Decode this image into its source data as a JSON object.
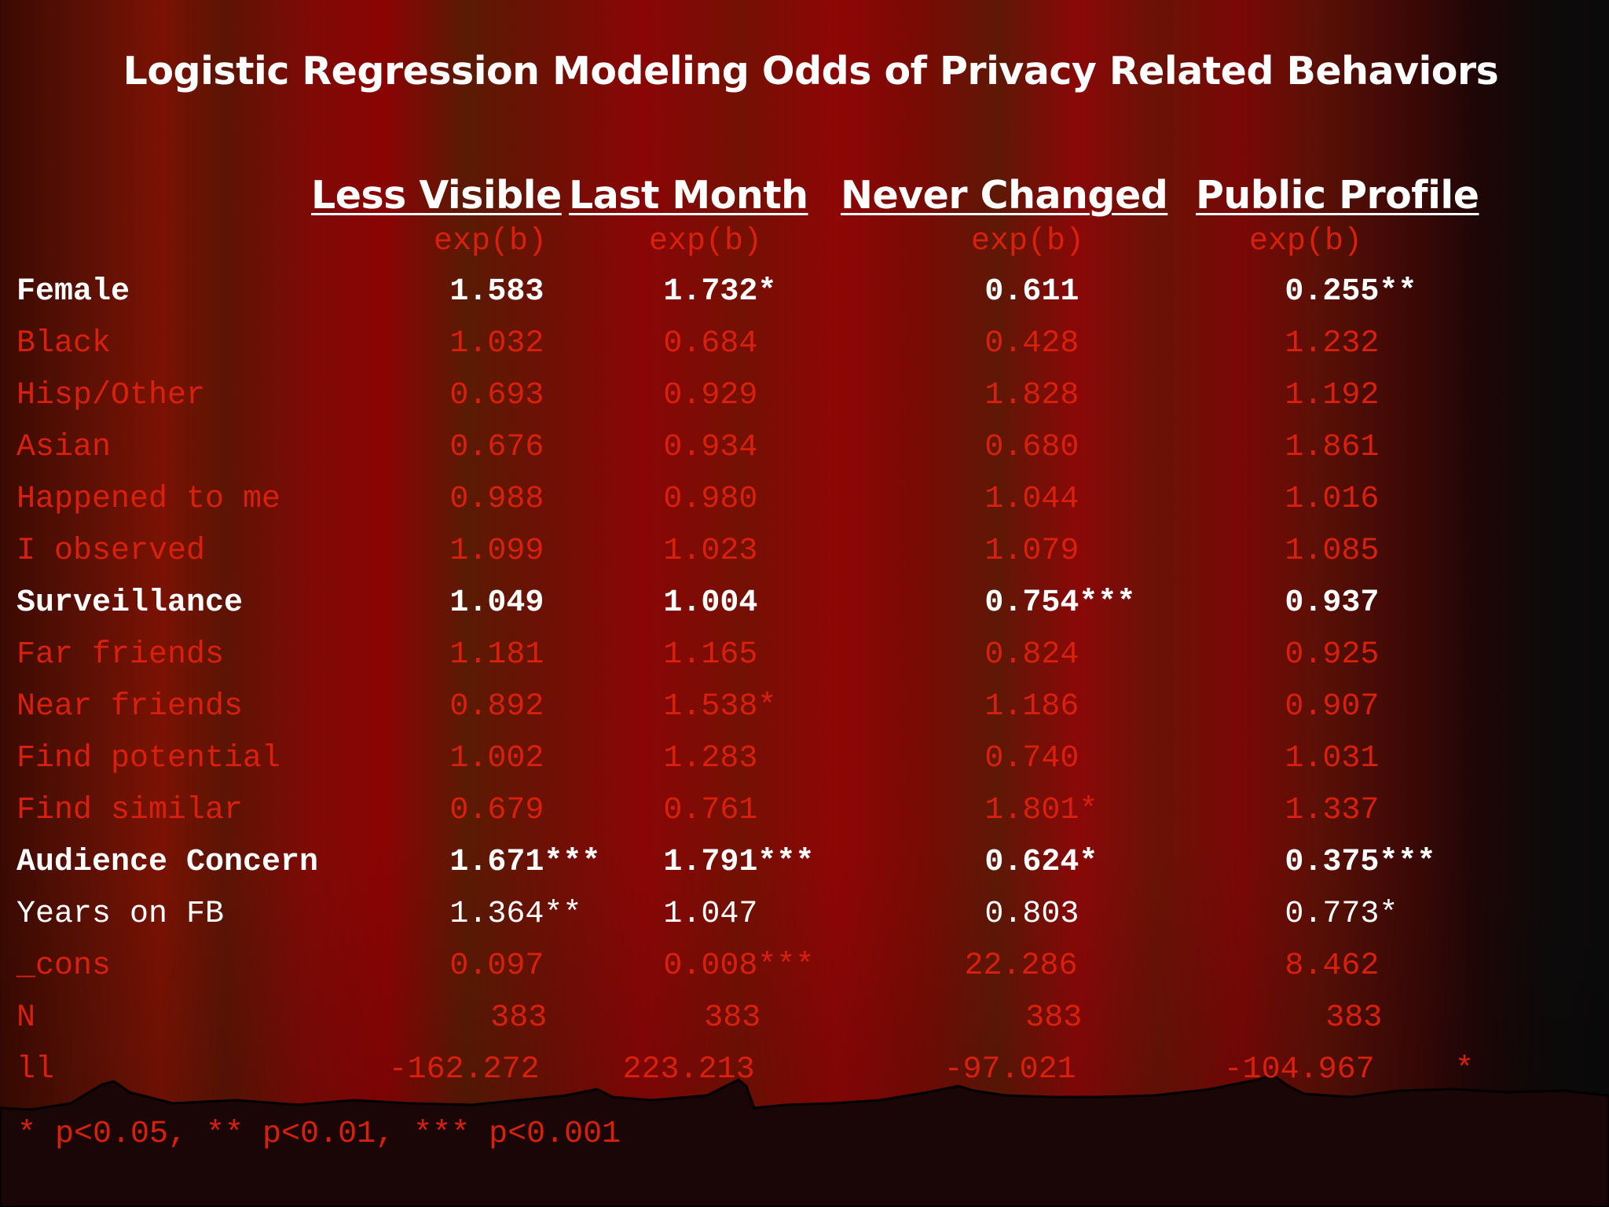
{
  "title": "Logistic Regression Modeling Odds of Privacy Related Behaviors",
  "columns": [
    {
      "header": "Less Visible",
      "sub": "exp(b)"
    },
    {
      "header": "Last Month",
      "sub": "exp(b)"
    },
    {
      "header": "Never Changed",
      "sub": "exp(b)"
    },
    {
      "header": "Public Profile",
      "sub": "exp(b)"
    }
  ],
  "rows": [
    {
      "label": "Female",
      "values": [
        "1.583",
        "1.732*",
        "0.611",
        "0.255**"
      ],
      "style": "white-bold"
    },
    {
      "label": "Black",
      "values": [
        "1.032",
        "0.684",
        "0.428",
        "1.232"
      ],
      "style": "red"
    },
    {
      "label": "Hisp/Other",
      "values": [
        "0.693",
        "0.929",
        "1.828",
        "1.192"
      ],
      "style": "red"
    },
    {
      "label": "Asian",
      "values": [
        "0.676",
        "0.934",
        "0.680",
        "1.861"
      ],
      "style": "red"
    },
    {
      "label": "Happened to me",
      "values": [
        "0.988",
        "0.980",
        "1.044",
        "1.016"
      ],
      "style": "red"
    },
    {
      "label": "I observed",
      "values": [
        "1.099",
        "1.023",
        "1.079",
        "1.085"
      ],
      "style": "red"
    },
    {
      "label": "Surveillance",
      "values": [
        "1.049",
        "1.004",
        "0.754***",
        "0.937"
      ],
      "style": "white-bold"
    },
    {
      "label": "Far friends",
      "values": [
        "1.181",
        "1.165",
        "0.824",
        "0.925"
      ],
      "style": "red"
    },
    {
      "label": "Near friends",
      "values": [
        "0.892",
        "1.538*",
        "1.186",
        "0.907"
      ],
      "style": "red"
    },
    {
      "label": "Find potential",
      "values": [
        "1.002",
        "1.283",
        "0.740",
        "1.031"
      ],
      "style": "red"
    },
    {
      "label": "Find similar",
      "values": [
        "0.679",
        "0.761",
        "1.801*",
        "1.337"
      ],
      "style": "red"
    },
    {
      "label": "Audience Concern",
      "values": [
        "1.671***",
        "1.791***",
        "0.624*",
        "0.375***"
      ],
      "style": "white-bold"
    },
    {
      "label": "Years on FB",
      "values": [
        "1.364**",
        "1.047",
        "0.803",
        "0.773*"
      ],
      "style": "white"
    },
    {
      "label": "_cons",
      "values": [
        "0.097",
        "0.008***",
        "22.286",
        "8.462"
      ],
      "style": "red"
    },
    {
      "label": "N",
      "values": [
        "383",
        "383",
        "383",
        "383"
      ],
      "style": "red"
    },
    {
      "label": "ll",
      "values": [
        "-162.272",
        "223.213",
        "-97.021",
        "-104.967"
      ],
      "style": "red"
    }
  ],
  "trailing_mark": "*",
  "footnote": "* p<0.05, ** p<0.01, *** p<0.001",
  "colors": {
    "red_text": "#d8200a",
    "white_text": "#ffffff",
    "background": "#7a0a04"
  }
}
